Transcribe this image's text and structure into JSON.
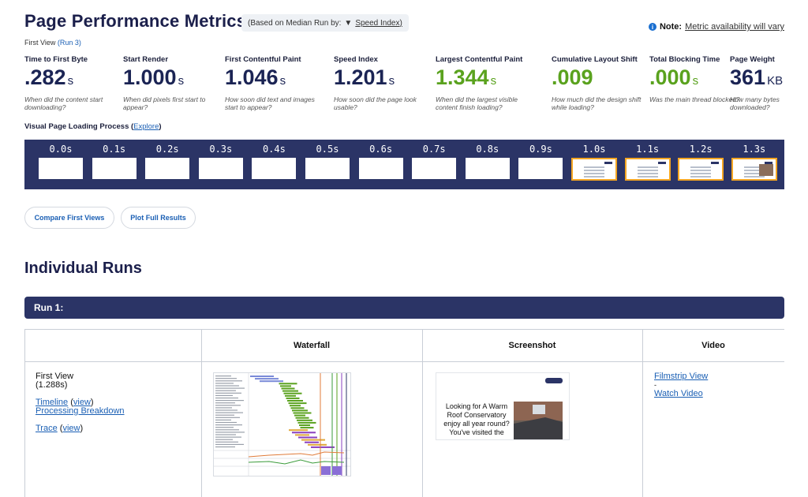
{
  "header": {
    "title": "Page Performance Metrics",
    "median_prefix": "(Based on Median Run by:",
    "median_arrow": "▼",
    "median_value": "Speed Index)",
    "note_icon": "info-icon",
    "note_bold": "Note:",
    "note_text": "Metric availability will vary",
    "first_view": "First View",
    "run_link": "(Run 3)"
  },
  "metrics": [
    {
      "label": "Time to First Byte",
      "value": ".282",
      "unit": "s",
      "desc": "When did the content start downloading?",
      "color": "#1b2454"
    },
    {
      "label": "Start Render",
      "value": "1.000",
      "unit": "s",
      "desc": "When did pixels first start to appear?",
      "color": "#1b2454"
    },
    {
      "label": "First Contentful Paint",
      "value": "1.046",
      "unit": "s",
      "desc": "How soon did text and images start to appear?",
      "color": "#1b2454"
    },
    {
      "label": "Speed Index",
      "value": "1.201",
      "unit": "s",
      "desc": "How soon did the page look usable?",
      "color": "#1b2454"
    },
    {
      "label": "Largest Contentful Paint",
      "value": "1.344",
      "unit": "s",
      "desc": "When did the largest visible content finish loading?",
      "color": "#5aa21e"
    },
    {
      "label": "Cumulative Layout Shift",
      "value": ".009",
      "unit": "",
      "desc": "How much did the design shift while loading?",
      "color": "#5aa21e"
    },
    {
      "label": "Total Blocking Time",
      "value": ".000",
      "unit": "s",
      "desc": "Was the main thread blocked?",
      "color": "#5aa21e"
    },
    {
      "label": "Page Weight",
      "value": "361",
      "unit": "KB",
      "desc": "How many bytes downloaded?",
      "color": "#1b2454"
    }
  ],
  "visual_loading": {
    "label": "Visual Page Loading Process",
    "explore_prefix": "(",
    "explore": "Explore",
    "explore_suffix": ")"
  },
  "filmstrip": {
    "frames": [
      "0.0s",
      "0.1s",
      "0.2s",
      "0.3s",
      "0.4s",
      "0.5s",
      "0.6s",
      "0.7s",
      "0.8s",
      "0.9s",
      "1.0s",
      "1.1s",
      "1.2s",
      "1.3s"
    ],
    "rendered_frames": [
      "1.0s",
      "1.1s",
      "1.2s",
      "1.3s"
    ],
    "highlight_color": "#f4a623"
  },
  "buttons": {
    "compare": "Compare First Views",
    "plot": "Plot Full Results"
  },
  "runs": {
    "title": "Individual Runs",
    "run_label": "Run 1:",
    "columns": [
      "",
      "Waterfall",
      "Screenshot",
      "Video"
    ],
    "first_view": "First View",
    "first_view_time": "(1.288s)",
    "timeline": "Timeline",
    "view": "view",
    "processing": "Processing Breakdown",
    "trace": "Trace",
    "filmstrip_view": "Filmstrip View",
    "dash": "-",
    "watch_video": "Watch Video",
    "screenshot_text": "Looking for A Warm Roof Conservatory enjoy all year round? You've visited the"
  }
}
